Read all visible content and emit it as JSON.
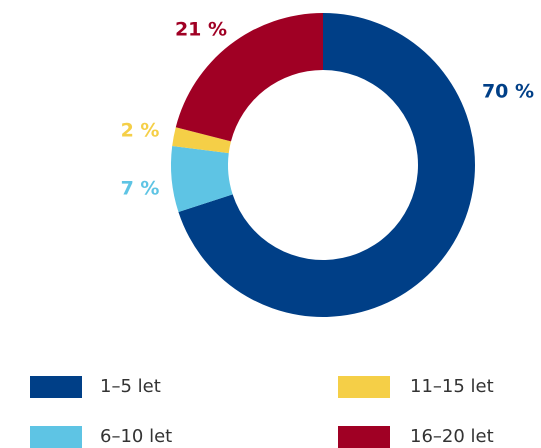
{
  "chart_data": {
    "type": "pie",
    "categories": [
      "1–5 let",
      "6–10 let",
      "11–15 let",
      "16–20 let"
    ],
    "values": [
      70,
      7,
      2,
      21
    ],
    "value_labels": [
      "70 %",
      "7 %",
      "2 %",
      "21 %"
    ],
    "colors": [
      "#003f87",
      "#5ec4e4",
      "#f5cf47",
      "#a00024"
    ]
  }
}
